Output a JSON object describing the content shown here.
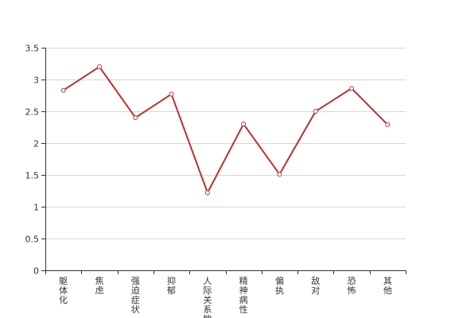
{
  "chart_data": {
    "type": "line",
    "categories": [
      "躯体化",
      "焦虑",
      "强迫症状",
      "抑郁",
      "人际关系敏感",
      "精神病性",
      "偏执",
      "敌对",
      "恐怖",
      "其他"
    ],
    "series": [
      {
        "values": [
          2.83,
          3.2,
          2.4,
          2.77,
          1.22,
          2.3,
          1.51,
          2.5,
          2.86,
          2.29
        ]
      }
    ],
    "yticks": [
      "0",
      "0.5",
      "1",
      "1.5",
      "2",
      "2.5",
      "3",
      "3.5"
    ],
    "ylim": [
      0,
      3.5
    ],
    "grid": true,
    "colors": {
      "line": "#b83333",
      "grid": "#d6d6d6",
      "axis": "#333333"
    }
  }
}
